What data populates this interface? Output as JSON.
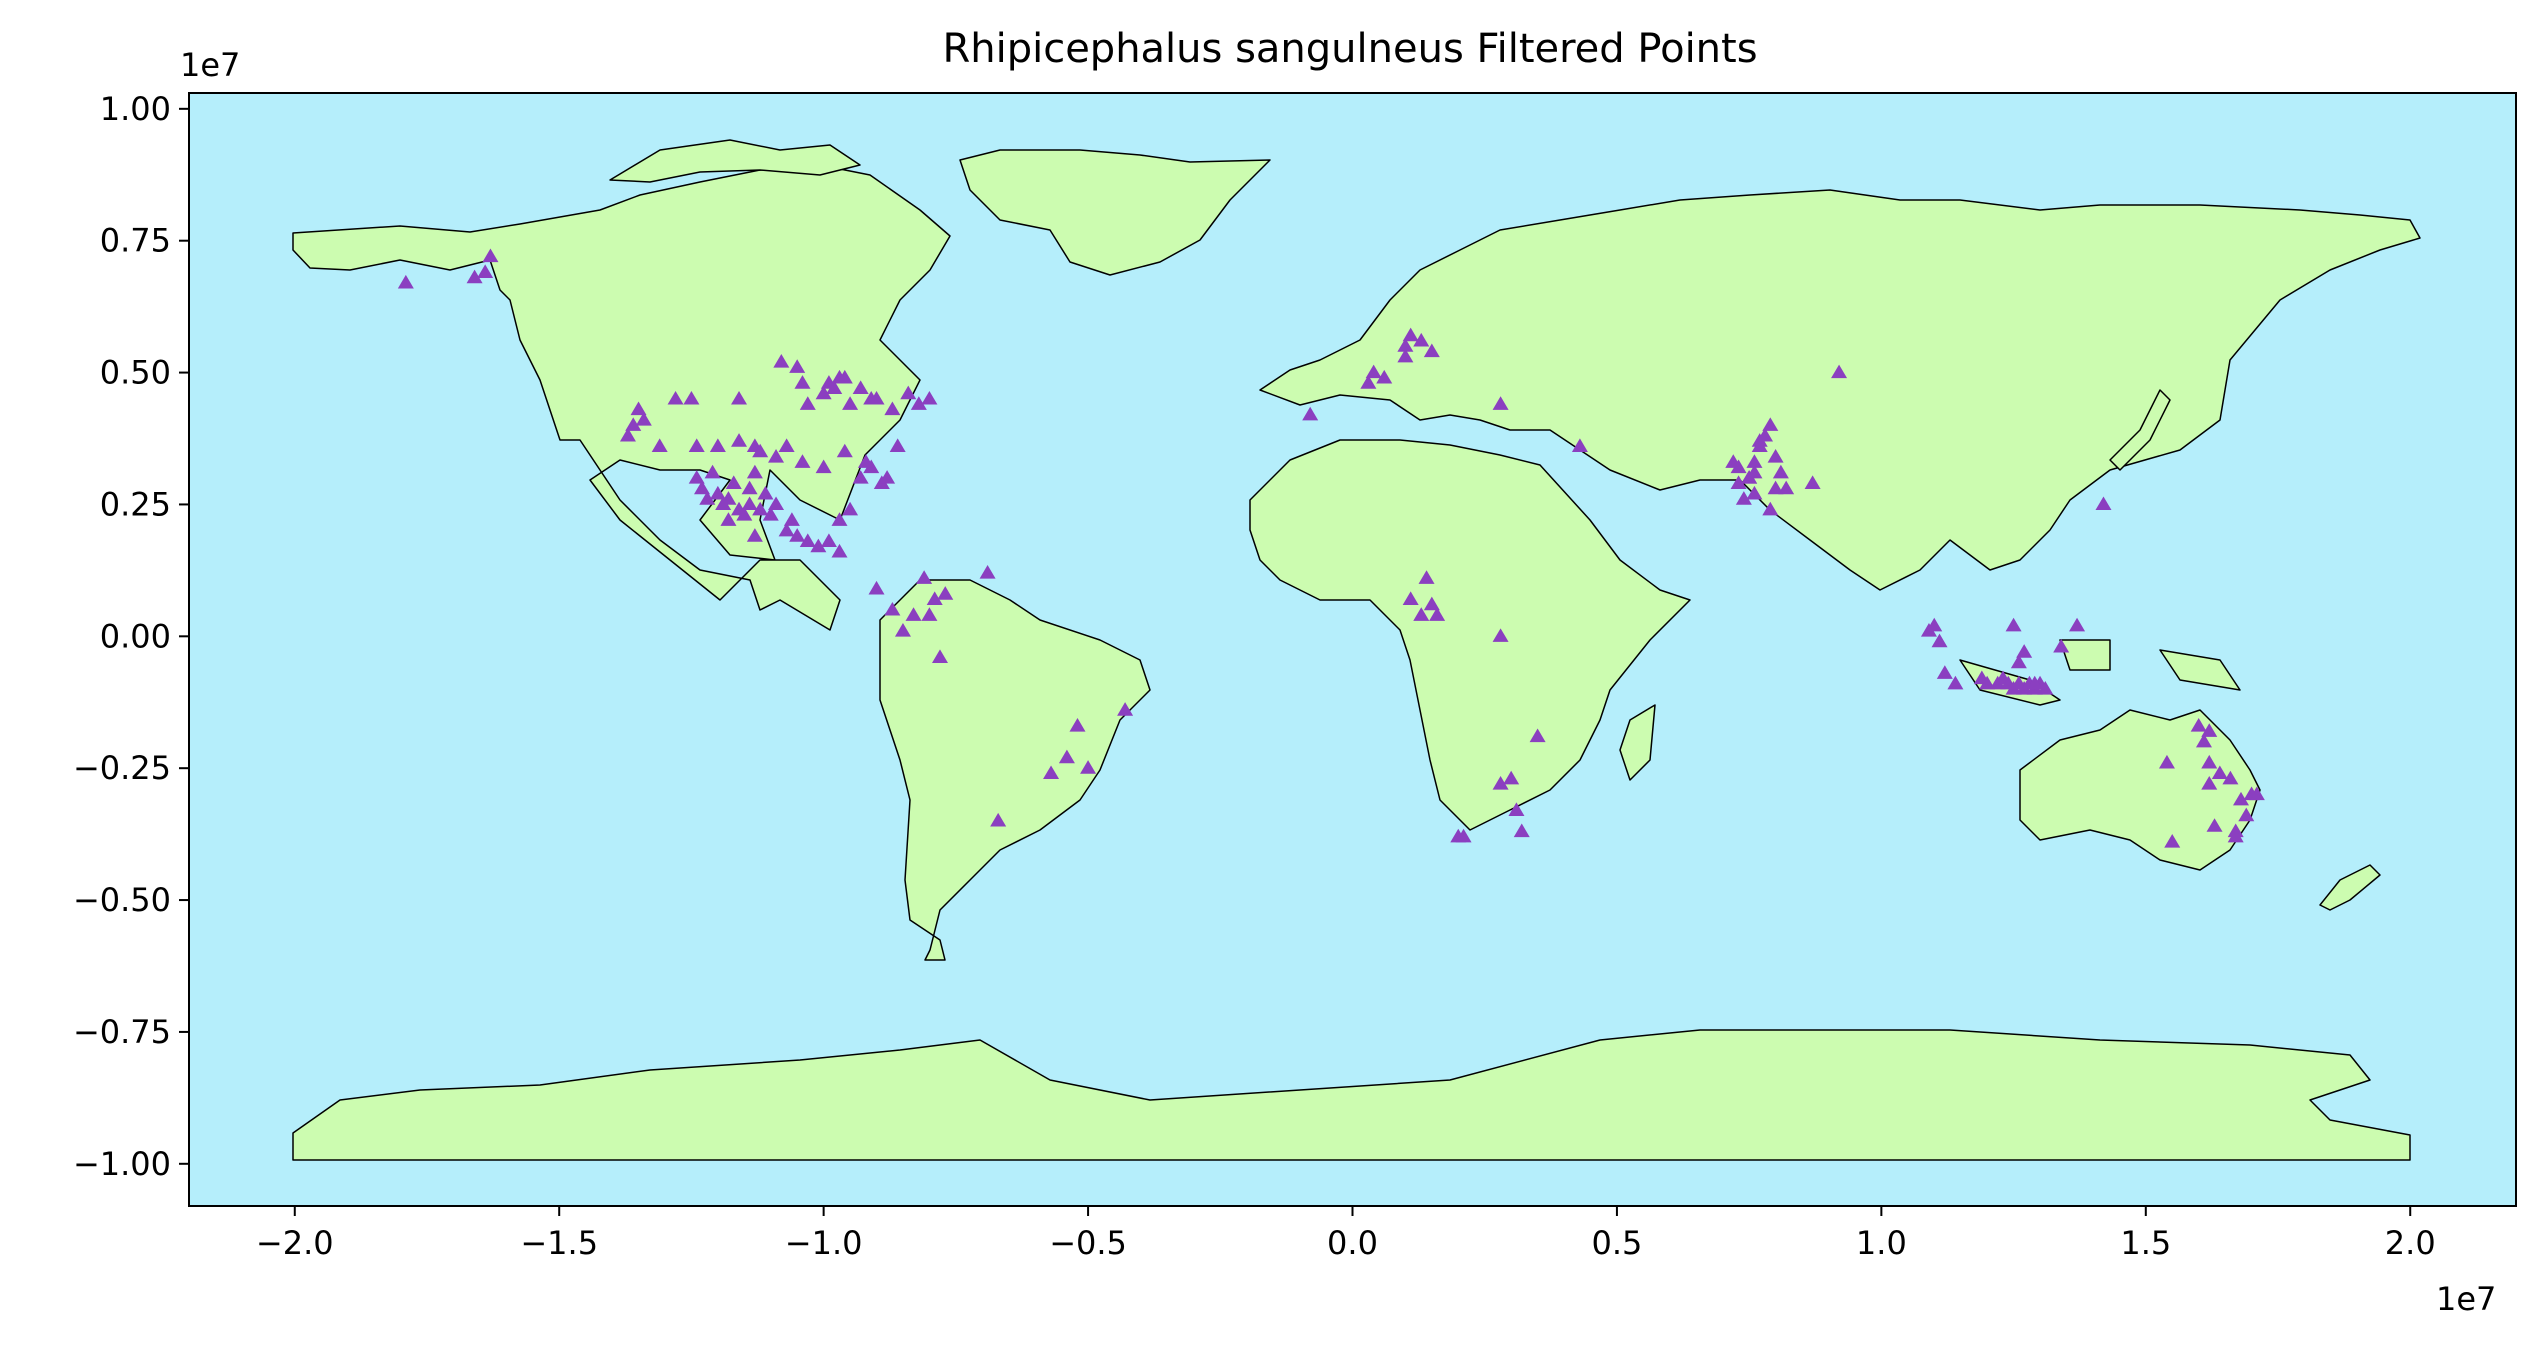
{
  "chart_data": {
    "type": "scatter",
    "title": "Rhipicephalus sangulneus Filtered Points",
    "xlabel": "",
    "ylabel": "",
    "x_offset_label": "1e7",
    "y_offset_label": "1e7",
    "xlim": [
      -2.2,
      2.2
    ],
    "ylim": [
      -1.08,
      1.03
    ],
    "xticks": [
      -2.0,
      -1.5,
      -1.0,
      -0.5,
      0.0,
      0.5,
      1.0,
      1.5,
      2.0
    ],
    "xtick_labels": [
      "−2.0",
      "−1.5",
      "−1.0",
      "−0.5",
      "0.0",
      "0.5",
      "1.0",
      "1.5",
      "2.0"
    ],
    "yticks": [
      1.0,
      0.75,
      0.5,
      0.25,
      0.0,
      -0.25,
      -0.5,
      -0.75,
      -1.0
    ],
    "ytick_labels": [
      "1.00",
      "0.75",
      "0.50",
      "0.25",
      "0.00",
      "−0.25",
      "−0.50",
      "−0.75",
      "−1.00"
    ],
    "grid": false,
    "legend": "none",
    "colors": {
      "ocean": "#b5eefb",
      "land": "#ccfcb0",
      "border": "#000000",
      "marker": "#8b3fc0"
    },
    "marker": "triangle-up",
    "series": [
      {
        "values_x": [
          -1.79,
          -1.63,
          -1.64,
          -1.66,
          -1.35,
          -1.34,
          -1.36,
          -1.37,
          -1.31,
          -1.28,
          -1.25,
          -1.24,
          -1.2,
          -1.16,
          -1.08,
          -1.13,
          -1.05,
          -1.04,
          -1.0,
          -0.99,
          -0.98,
          -0.97,
          -0.95,
          -0.93,
          -0.9,
          -0.87,
          -0.84,
          -0.8,
          -0.82,
          -0.86,
          -0.91,
          -0.96,
          -1.03,
          -1.07,
          -1.12,
          -1.16,
          -1.21,
          -1.24,
          -1.23,
          -1.22,
          -1.2,
          -1.18,
          -1.14,
          -1.12,
          -1.1,
          -1.09,
          -1.11,
          -1.14,
          -1.16,
          -1.18,
          -1.19,
          -1.15,
          -1.07,
          -1.05,
          -1.03,
          -1.01,
          -0.99,
          -0.97,
          -0.95,
          -0.93,
          -0.91,
          -0.89,
          -0.96,
          -0.92,
          -0.88,
          -1.06,
          -1.13,
          -1.17,
          -1.13,
          -1.09,
          -1.04,
          -1.0,
          -0.97,
          -0.9,
          -0.87,
          -0.83,
          -0.79,
          -0.81,
          -0.77,
          -0.85,
          -0.8,
          -0.69,
          -0.78,
          -0.52,
          -0.43,
          -0.54,
          -0.57,
          -0.5,
          -0.67,
          -0.08,
          0.03,
          0.04,
          0.06,
          0.1,
          0.1,
          0.11,
          0.13,
          0.15,
          0.28,
          0.43,
          0.11,
          0.15,
          0.13,
          0.16,
          0.14,
          0.28,
          0.35,
          0.3,
          0.31,
          0.28,
          0.32,
          0.2,
          0.21,
          0.72,
          0.73,
          0.74,
          0.75,
          0.76,
          0.77,
          0.78,
          0.79,
          0.8,
          0.81,
          0.82,
          0.76,
          0.73,
          0.75,
          0.77,
          0.79,
          0.8,
          0.76,
          0.87,
          0.92,
          1.09,
          1.1,
          1.11,
          1.12,
          1.14,
          1.19,
          1.2,
          1.22,
          1.23,
          1.24,
          1.25,
          1.26,
          1.27,
          1.28,
          1.29,
          1.3,
          1.31,
          1.25,
          1.27,
          1.34,
          1.37,
          1.26,
          1.42,
          1.29,
          1.54,
          1.6,
          1.62,
          1.61,
          1.64,
          1.66,
          1.62,
          1.63,
          1.67,
          1.69,
          1.68,
          1.55,
          1.62,
          1.67,
          1.7,
          1.71
        ],
        "values_y": [
          0.67,
          0.72,
          0.69,
          0.68,
          0.43,
          0.41,
          0.4,
          0.38,
          0.36,
          0.45,
          0.45,
          0.36,
          0.36,
          0.45,
          0.52,
          0.36,
          0.51,
          0.48,
          0.46,
          0.48,
          0.47,
          0.49,
          0.44,
          0.47,
          0.45,
          0.43,
          0.46,
          0.45,
          0.44,
          0.36,
          0.45,
          0.49,
          0.44,
          0.36,
          0.35,
          0.37,
          0.31,
          0.3,
          0.28,
          0.26,
          0.27,
          0.26,
          0.25,
          0.24,
          0.23,
          0.25,
          0.27,
          0.28,
          0.24,
          0.22,
          0.25,
          0.23,
          0.2,
          0.19,
          0.18,
          0.17,
          0.18,
          0.22,
          0.24,
          0.3,
          0.32,
          0.29,
          0.35,
          0.33,
          0.3,
          0.22,
          0.19,
          0.29,
          0.31,
          0.34,
          0.33,
          0.32,
          0.16,
          0.09,
          0.05,
          0.04,
          0.07,
          0.11,
          0.08,
          0.01,
          0.04,
          0.12,
          -0.04,
          -0.17,
          -0.14,
          -0.23,
          -0.26,
          -0.25,
          -0.35,
          0.42,
          0.48,
          0.5,
          0.49,
          0.55,
          0.53,
          0.57,
          0.56,
          0.54,
          0.44,
          0.36,
          0.07,
          0.06,
          0.04,
          0.04,
          0.11,
          0.0,
          -0.19,
          -0.27,
          -0.33,
          -0.28,
          -0.37,
          -0.38,
          -0.38,
          0.33,
          0.29,
          0.26,
          0.3,
          0.33,
          0.37,
          0.38,
          0.4,
          0.34,
          0.31,
          0.28,
          0.27,
          0.32,
          0.3,
          0.36,
          0.24,
          0.28,
          0.31,
          0.29,
          0.5,
          0.01,
          0.02,
          -0.01,
          -0.07,
          -0.09,
          -0.08,
          -0.09,
          -0.09,
          -0.08,
          -0.09,
          -0.1,
          -0.09,
          -0.1,
          -0.09,
          -0.1,
          -0.09,
          -0.1,
          0.02,
          -0.03,
          -0.02,
          0.02,
          -0.05,
          0.25,
          -0.09,
          -0.24,
          -0.17,
          -0.18,
          -0.2,
          -0.26,
          -0.27,
          -0.28,
          -0.36,
          -0.37,
          -0.34,
          -0.31,
          -0.39,
          -0.24,
          -0.38,
          -0.3,
          -0.3
        ]
      }
    ]
  }
}
